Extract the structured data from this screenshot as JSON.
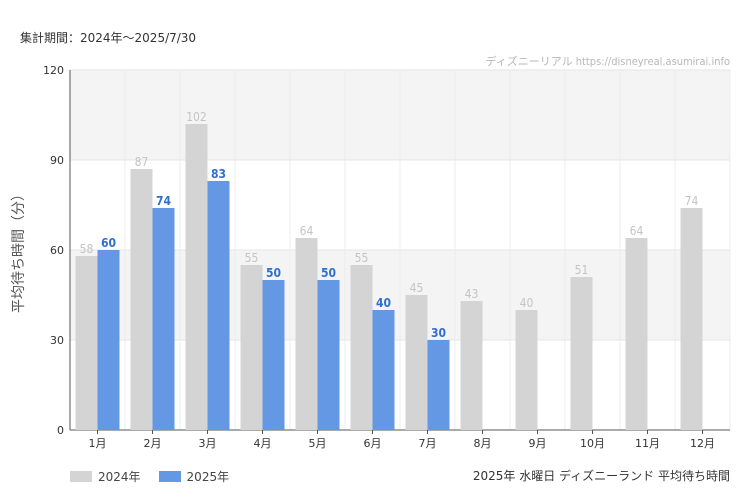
{
  "header": {
    "period": "集計期間：2024年～2025/7/30",
    "watermark": "ディズニーリアル https://disneyreal.asumirai.info"
  },
  "footer": {
    "caption": "2025年 水曜日 ディズニーランド 平均待ち時間"
  },
  "colors": {
    "series_2024": "#d4d4d4",
    "series_2025": "#6498e4",
    "label_2024": "#c4c4c4",
    "label_2025": "#2f6fd0"
  },
  "chart_data": {
    "type": "bar",
    "ylabel": "平均待ち時間（分）",
    "ylim": [
      0,
      120
    ],
    "yticks": [
      "0",
      "30",
      "60",
      "90",
      "120"
    ],
    "categories": [
      "1月",
      "2月",
      "3月",
      "4月",
      "5月",
      "6月",
      "7月",
      "8月",
      "9月",
      "10月",
      "11月",
      "12月"
    ],
    "series": [
      {
        "name": "2024年",
        "values": [
          58,
          87,
          102,
          55,
          64,
          55,
          45,
          43,
          40,
          51,
          64,
          74
        ]
      },
      {
        "name": "2025年",
        "values": [
          60,
          74,
          83,
          50,
          50,
          40,
          30,
          null,
          null,
          null,
          null,
          null
        ]
      }
    ],
    "legend": "bottom-left",
    "grid": true
  }
}
